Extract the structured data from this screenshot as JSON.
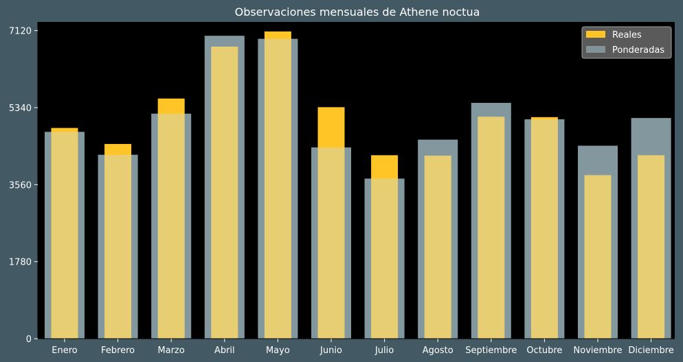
{
  "chart_data": {
    "type": "bar",
    "title": "Observaciones mensuales de Athene noctua",
    "xlabel": "",
    "ylabel": "",
    "categories": [
      "Enero",
      "Febrero",
      "Marzo",
      "Abril",
      "Mayo",
      "Junio",
      "Julio",
      "Agosto",
      "Septiembre",
      "Octubre",
      "Noviembre",
      "Diciembre"
    ],
    "series": [
      {
        "name": "Reales",
        "color": "#ffc527",
        "values": [
          4870,
          4500,
          5550,
          6750,
          7100,
          5350,
          4240,
          4230,
          5130,
          5120,
          3780,
          4240
        ]
      },
      {
        "name": "Ponderadas",
        "color": "#c3dde3",
        "opacity": 0.4,
        "values": [
          4780,
          4250,
          5200,
          7000,
          6930,
          4420,
          3700,
          4600,
          5450,
          5070,
          4460,
          5100
        ]
      }
    ],
    "ylim": [
      0,
      7320
    ],
    "yticks": [
      0,
      1780,
      3560,
      5340,
      7120
    ],
    "grid": false,
    "legend_position": "top-right",
    "plot_background": "#000000",
    "figure_background": "#435963"
  }
}
